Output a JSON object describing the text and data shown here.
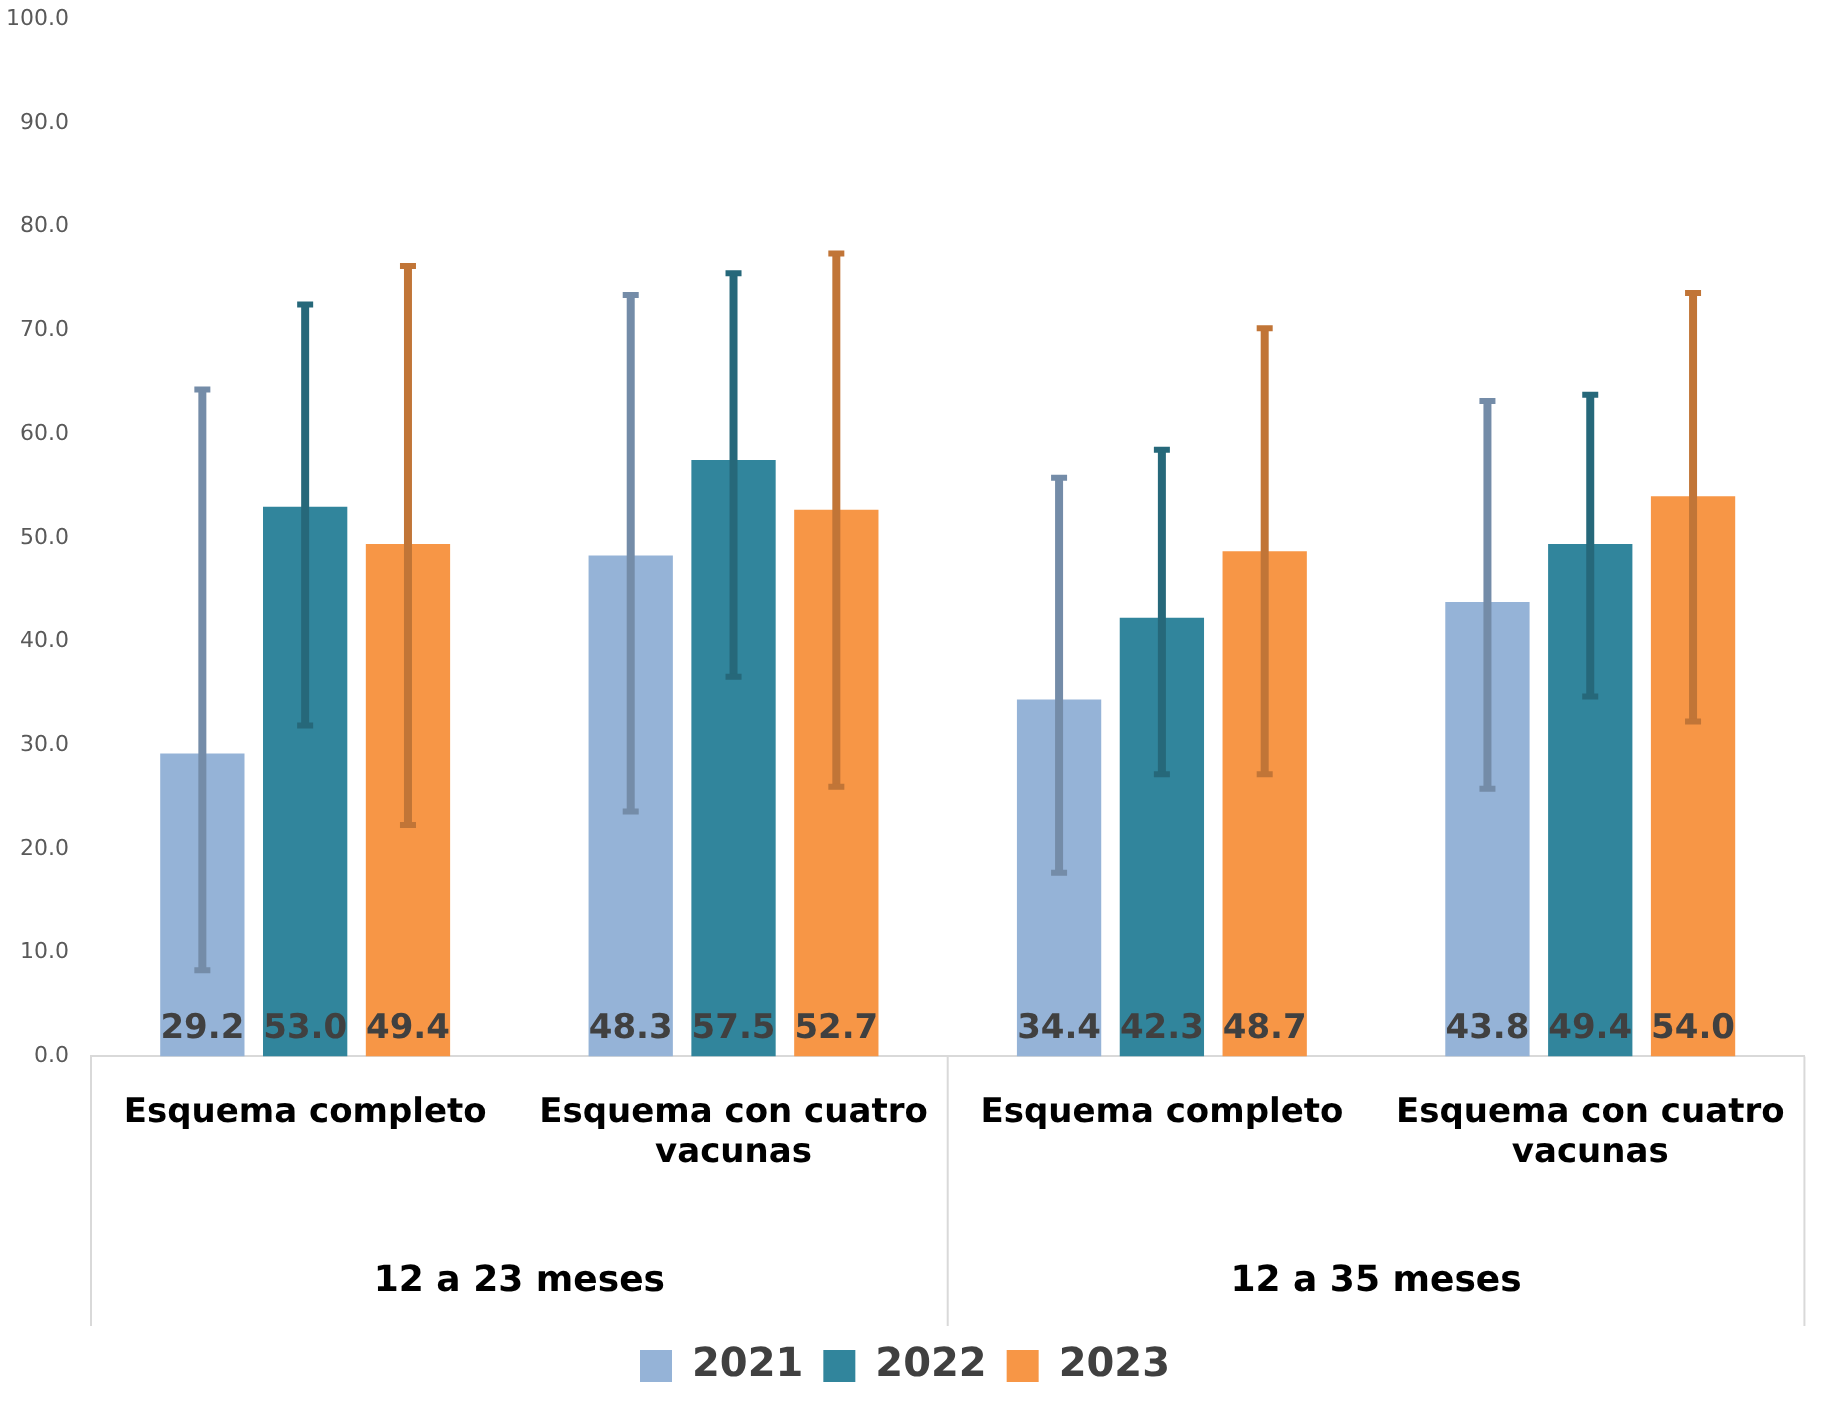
{
  "chart_data": {
    "type": "bar",
    "categories": [
      "Esquema completo",
      "Esquema con cuatro vacunas",
      "Esquema completo",
      "Esquema con cuatro vacunas"
    ],
    "series": [
      {
        "name": "2021",
        "color": "#95b3d7",
        "values": [
          29.2,
          48.3,
          34.4,
          43.8
        ],
        "value_labels": [
          "29.2",
          "48.3",
          "34.4",
          "43.8"
        ],
        "errors": [
          [
            8.3,
            64.3
          ],
          [
            23.6,
            73.4
          ],
          [
            17.7,
            55.8
          ],
          [
            25.8,
            63.2
          ]
        ]
      },
      {
        "name": "2022",
        "color": "#31859c",
        "values": [
          53.0,
          57.5,
          42.3,
          49.4
        ],
        "value_labels": [
          "53.0",
          "57.5",
          "42.3",
          "49.4"
        ],
        "errors": [
          [
            31.9,
            72.5
          ],
          [
            36.6,
            75.5
          ],
          [
            27.2,
            58.5
          ],
          [
            34.7,
            63.8
          ]
        ]
      },
      {
        "name": "2023",
        "color": "#f79646",
        "values": [
          49.4,
          52.7,
          48.7,
          54.0
        ],
        "value_labels": [
          "49.4",
          "52.7",
          "48.7",
          "54.0"
        ],
        "errors": [
          [
            22.3,
            76.2
          ],
          [
            26.0,
            77.4
          ],
          [
            27.2,
            70.2
          ],
          [
            32.3,
            73.6
          ]
        ]
      }
    ],
    "ylim": [
      0,
      100
    ],
    "yticks": [
      {
        "value": 0,
        "label": "0.0"
      },
      {
        "value": 10,
        "label": "10.0"
      },
      {
        "value": 20,
        "label": "20.0"
      },
      {
        "value": 30,
        "label": "30.0"
      },
      {
        "value": 40,
        "label": "40.0"
      },
      {
        "value": 50,
        "label": "50.0"
      },
      {
        "value": 60,
        "label": "60.0"
      },
      {
        "value": 70,
        "label": "70.0"
      },
      {
        "value": 80,
        "label": "80.0"
      },
      {
        "value": 90,
        "label": "90.0"
      },
      {
        "value": 100,
        "label": "100.0"
      }
    ],
    "annotations": [
      "12 a 23 meses",
      "12 a 35 meses"
    ],
    "grid": false,
    "legend": "bottom"
  }
}
